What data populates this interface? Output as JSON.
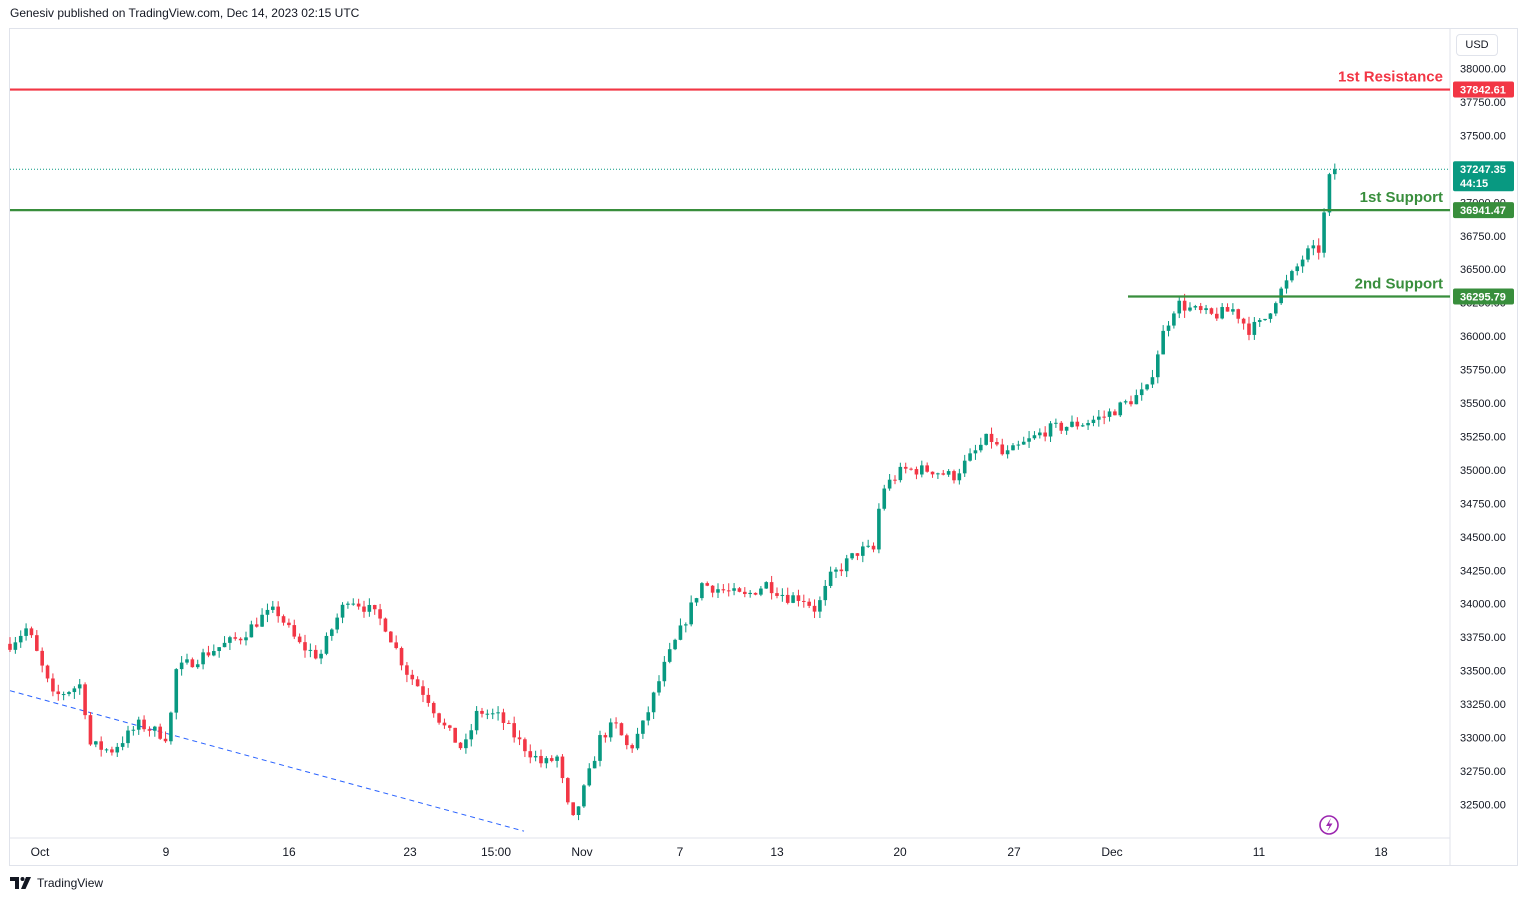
{
  "header": {
    "text": "Genesiv published on TradingView.com, Dec 14, 2023 02:15 UTC"
  },
  "price_axis": {
    "currency": "USD"
  },
  "footer": {
    "brand": "TradingView",
    "logo_icon": "tradingview-logo-icon"
  },
  "levels": [
    {
      "label": "1st Resistance",
      "value": "37842.61",
      "price": 37842.61,
      "color": "#f23645"
    },
    {
      "label": "1st Support",
      "value": "36941.47",
      "price": 36941.47,
      "color": "#388e3c"
    },
    {
      "label": "2nd Support",
      "value": "36295.79",
      "price": 36295.79,
      "color": "#388e3c"
    }
  ],
  "last_price": {
    "value": "37247.35",
    "countdown": "44:15",
    "price": 37247.35,
    "color": "#089981"
  },
  "chart_data": {
    "type": "candlestick",
    "title": "",
    "ylim": [
      32300,
      38200
    ],
    "y_ticks": [
      "38000.00",
      "37750.00",
      "37500.00",
      "37250.00",
      "37000.00",
      "36750.00",
      "36500.00",
      "36250.00",
      "36000.00",
      "35750.00",
      "35500.00",
      "35250.00",
      "35000.00",
      "34750.00",
      "34500.00",
      "34250.00",
      "34000.00",
      "33750.00",
      "33500.00",
      "33250.00",
      "33000.00",
      "32750.00",
      "32500.00"
    ],
    "x_ticks": [
      "Oct",
      "9",
      "16",
      "23",
      "15:00",
      "Nov",
      "7",
      "13",
      "20",
      "27",
      "Dec",
      "11",
      "18"
    ],
    "trendline": {
      "start": 33350,
      "end": 32300,
      "style": "dashed",
      "color": "#2962ff"
    },
    "series": {
      "up_color": "#089981",
      "down_color": "#f23645",
      "waypoints": [
        [
          0,
          33700
        ],
        [
          0.012,
          33820
        ],
        [
          0.03,
          33300
        ],
        [
          0.05,
          33400
        ],
        [
          0.055,
          32950
        ],
        [
          0.07,
          32900
        ],
        [
          0.09,
          33100
        ],
        [
          0.11,
          33000
        ],
        [
          0.115,
          33500
        ],
        [
          0.14,
          33650
        ],
        [
          0.16,
          33750
        ],
        [
          0.175,
          33900
        ],
        [
          0.185,
          33950
        ],
        [
          0.2,
          33700
        ],
        [
          0.215,
          33600
        ],
        [
          0.225,
          33850
        ],
        [
          0.235,
          34050
        ],
        [
          0.25,
          33950
        ],
        [
          0.26,
          33850
        ],
        [
          0.275,
          33500
        ],
        [
          0.29,
          33300
        ],
        [
          0.3,
          33100
        ],
        [
          0.315,
          32900
        ],
        [
          0.325,
          33200
        ],
        [
          0.34,
          33150
        ],
        [
          0.355,
          32950
        ],
        [
          0.37,
          32800
        ],
        [
          0.38,
          32850
        ],
        [
          0.39,
          32350
        ],
        [
          0.4,
          32650
        ],
        [
          0.41,
          33000
        ],
        [
          0.42,
          33100
        ],
        [
          0.43,
          32900
        ],
        [
          0.44,
          33100
        ],
        [
          0.455,
          33550
        ],
        [
          0.47,
          33900
        ],
        [
          0.48,
          34150
        ],
        [
          0.51,
          34050
        ],
        [
          0.525,
          34150
        ],
        [
          0.54,
          34050
        ],
        [
          0.55,
          34050
        ],
        [
          0.56,
          33950
        ],
        [
          0.57,
          34200
        ],
        [
          0.59,
          34400
        ],
        [
          0.6,
          34400
        ],
        [
          0.605,
          34850
        ],
        [
          0.62,
          35000
        ],
        [
          0.64,
          35000
        ],
        [
          0.655,
          34950
        ],
        [
          0.68,
          35250
        ],
        [
          0.69,
          35100
        ],
        [
          0.705,
          35200
        ],
        [
          0.72,
          35300
        ],
        [
          0.745,
          35350
        ],
        [
          0.76,
          35400
        ],
        [
          0.775,
          35500
        ],
        [
          0.79,
          35600
        ],
        [
          0.8,
          36000
        ],
        [
          0.81,
          36250
        ],
        [
          0.82,
          36200
        ],
        [
          0.835,
          36150
        ],
        [
          0.85,
          36200
        ],
        [
          0.86,
          36050
        ],
        [
          0.87,
          36100
        ],
        [
          0.88,
          36300
        ],
        [
          0.89,
          36450
        ],
        [
          0.9,
          36620
        ],
        [
          0.91,
          36650
        ],
        [
          0.915,
          37150
        ],
        [
          0.92,
          37247.35
        ]
      ]
    }
  }
}
